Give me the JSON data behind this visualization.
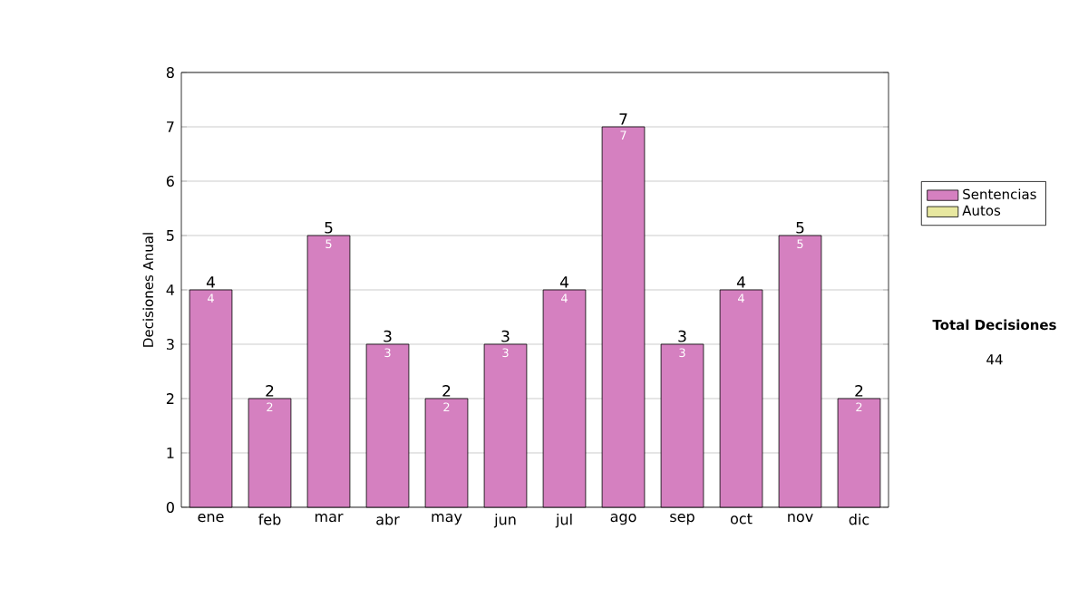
{
  "chart_data": {
    "type": "bar",
    "stacked": true,
    "ylabel": "Decisiones Anual",
    "categories": [
      "ene",
      "feb",
      "mar",
      "abr",
      "may",
      "jun",
      "jul",
      "ago",
      "sep",
      "oct",
      "nov",
      "dic"
    ],
    "series": [
      {
        "name": "Sentencias",
        "color": "#d580c0",
        "values": [
          4,
          2,
          5,
          3,
          2,
          3,
          4,
          7,
          3,
          4,
          5,
          2
        ],
        "value_labels": [
          "4",
          "2",
          "5",
          "3",
          "2",
          "3",
          "4",
          "7",
          "3",
          "4",
          "5",
          "2"
        ]
      },
      {
        "name": "Autos",
        "color": "#e8e8a0",
        "values": [
          0,
          0,
          0,
          0,
          0,
          0,
          0,
          0,
          0,
          0,
          0,
          0
        ]
      }
    ],
    "totals": [
      "4",
      "2",
      "5",
      "3",
      "2",
      "3",
      "4",
      "7",
      "3",
      "4",
      "5",
      "2"
    ],
    "ylim": [
      0,
      8
    ],
    "yticks": [
      0,
      1,
      2,
      3,
      4,
      5,
      6,
      7,
      8
    ],
    "grid": "y",
    "legend": "right",
    "annotations": [
      "Total Decisiones",
      "44"
    ]
  }
}
